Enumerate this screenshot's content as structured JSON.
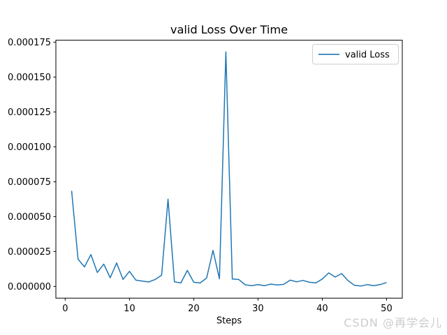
{
  "chart_data": {
    "type": "line",
    "title": "valid Loss Over Time",
    "xlabel": "Steps",
    "ylabel": "",
    "grid": false,
    "legend": {
      "position": "upper-right",
      "label": "valid Loss"
    },
    "xlim": [
      -1.45,
      52.45
    ],
    "ylim": [
      -8.4e-06,
      0.0001764
    ],
    "x_ticks": [
      0,
      10,
      20,
      30,
      40,
      50
    ],
    "x_tick_labels": [
      "0",
      "10",
      "20",
      "30",
      "40",
      "50"
    ],
    "y_ticks": [
      0,
      2.5e-05,
      5e-05,
      7.5e-05,
      0.0001,
      0.000125,
      0.00015,
      0.000175
    ],
    "y_tick_labels": [
      "0.000000",
      "0.000025",
      "0.000050",
      "0.000075",
      "0.000100",
      "0.000125",
      "0.000150",
      "0.000175"
    ],
    "series": [
      {
        "name": "valid Loss",
        "color": "#1f77b4",
        "x": [
          1,
          2,
          3,
          4,
          5,
          6,
          7,
          8,
          9,
          10,
          11,
          12,
          13,
          14,
          15,
          16,
          17,
          18,
          19,
          20,
          21,
          22,
          23,
          24,
          25,
          26,
          27,
          28,
          29,
          30,
          31,
          32,
          33,
          34,
          35,
          36,
          37,
          38,
          39,
          40,
          41,
          42,
          43,
          44,
          45,
          46,
          47,
          48,
          49,
          50
        ],
        "values": [
          6.85e-05,
          1.95e-05,
          1.4e-05,
          2.28e-05,
          1e-05,
          1.6e-05,
          6.2e-06,
          1.68e-05,
          5e-06,
          1.08e-05,
          4.5e-06,
          3.8e-06,
          3.2e-06,
          5e-06,
          8e-06,
          6.25e-05,
          3.3e-06,
          2.5e-06,
          1.15e-05,
          3e-06,
          2.5e-06,
          6e-06,
          2.58e-05,
          5.5e-06,
          0.000168,
          5.3e-06,
          5e-06,
          1.2e-06,
          5e-07,
          1.3e-06,
          5e-07,
          1.7e-06,
          1e-06,
          1.5e-06,
          4.5e-06,
          3.3e-06,
          4.3e-06,
          3e-06,
          2.5e-06,
          5.3e-06,
          9.7e-06,
          6.7e-06,
          9.2e-06,
          4.2e-06,
          8e-07,
          3e-07,
          1.3e-06,
          5e-07,
          1.3e-06,
          2.8e-06
        ]
      }
    ]
  },
  "colors": {
    "line": "#1f77b4",
    "axes": "#000000",
    "background": "#ffffff",
    "legend_border": "#cccccc",
    "watermark": "#cccccc"
  },
  "watermark": {
    "text": "CSDN @再学会儿"
  }
}
